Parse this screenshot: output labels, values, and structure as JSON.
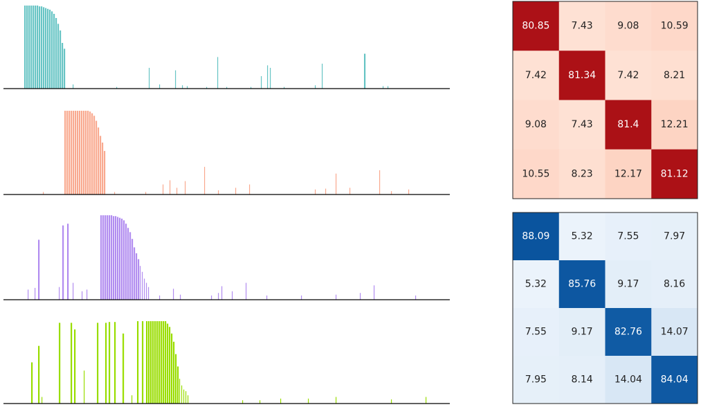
{
  "chart_data": [
    {
      "type": "bar",
      "color": "#66c4c4",
      "xlim": [
        0,
        645
      ],
      "ylim": [
        0,
        1
      ],
      "x": [
        30,
        33,
        36,
        39,
        42,
        45,
        48,
        51,
        54,
        57,
        60,
        63,
        66,
        69,
        72,
        75,
        78,
        81,
        84,
        87,
        100,
        163,
        210,
        225,
        248,
        258,
        265,
        293,
        309,
        322,
        357,
        372,
        381,
        385,
        405,
        450,
        460,
        521,
        548,
        555
      ],
      "values": [
        1,
        1,
        1,
        1,
        1,
        1,
        1,
        0.99,
        0.99,
        0.98,
        0.97,
        0.96,
        0.95,
        0.93,
        0.9,
        0.85,
        0.78,
        0.7,
        0.55,
        0.48,
        0.05,
        0.02,
        0.25,
        0.05,
        0.22,
        0.04,
        0.03,
        0.02,
        0.38,
        0.02,
        0.02,
        0.15,
        0.28,
        0.25,
        0.02,
        0.04,
        0.3,
        0.42,
        0.03,
        0.03
      ]
    },
    {
      "type": "bar",
      "color": "#f9a98f",
      "xlim": [
        0,
        645
      ],
      "ylim": [
        0,
        1
      ],
      "x": [
        88,
        91,
        94,
        97,
        100,
        103,
        106,
        109,
        112,
        115,
        118,
        121,
        124,
        127,
        130,
        133,
        136,
        139,
        142,
        145,
        57,
        160,
        205,
        230,
        240,
        250,
        262,
        290,
        310,
        335,
        355,
        450,
        465,
        480,
        500,
        543,
        560,
        585
      ],
      "values": [
        1,
        1,
        1,
        1,
        1,
        1,
        1,
        1,
        1,
        1,
        1,
        1,
        0.99,
        0.97,
        0.94,
        0.88,
        0.8,
        0.7,
        0.62,
        0.52,
        0.03,
        0.03,
        0.03,
        0.12,
        0.17,
        0.08,
        0.16,
        0.33,
        0.05,
        0.08,
        0.12,
        0.06,
        0.07,
        0.25,
        0.08,
        0.29,
        0.04,
        0.06
      ]
    },
    {
      "type": "bar",
      "color": "#b18cf0",
      "xlim": [
        0,
        645
      ],
      "ylim": [
        0,
        1
      ],
      "x": [
        35,
        45,
        50,
        80,
        85,
        92,
        100,
        113,
        120,
        140,
        143,
        146,
        149,
        152,
        155,
        158,
        161,
        164,
        167,
        170,
        173,
        176,
        179,
        182,
        185,
        188,
        191,
        194,
        197,
        200,
        203,
        206,
        209,
        225,
        245,
        255,
        300,
        310,
        315,
        330,
        350,
        380,
        430,
        480,
        515,
        535,
        595
      ],
      "values": [
        0.12,
        0.14,
        0.71,
        0.15,
        0.88,
        0.9,
        0.2,
        0.1,
        0.12,
        1,
        1,
        1,
        1,
        1,
        1,
        0.99,
        0.99,
        0.98,
        0.97,
        0.96,
        0.94,
        0.9,
        0.85,
        0.8,
        0.72,
        0.62,
        0.55,
        0.48,
        0.4,
        0.33,
        0.25,
        0.2,
        0.15,
        0.05,
        0.13,
        0.06,
        0.05,
        0.08,
        0.16,
        0.1,
        0.2,
        0.05,
        0.05,
        0.06,
        0.08,
        0.17,
        0.05
      ]
    },
    {
      "type": "bar",
      "color": "#99dd00",
      "xlim": [
        0,
        645
      ],
      "ylim": [
        0,
        1
      ],
      "x": [
        40,
        50,
        55,
        80,
        97,
        102,
        116,
        135,
        147,
        152,
        160,
        172,
        185,
        193,
        200,
        206,
        209,
        212,
        215,
        218,
        221,
        224,
        227,
        230,
        233,
        236,
        239,
        242,
        245,
        248,
        251,
        254,
        257,
        260,
        263,
        266,
        345,
        370,
        400,
        440,
        480,
        560,
        610
      ],
      "values": [
        0.5,
        0.7,
        0.08,
        0.98,
        0.98,
        0.9,
        0.4,
        0.98,
        0.98,
        0.99,
        0.99,
        0.85,
        0.1,
        1,
        1,
        1,
        1,
        1,
        1,
        1,
        1,
        1,
        1,
        1,
        1,
        0.97,
        0.93,
        0.85,
        0.75,
        0.6,
        0.45,
        0.3,
        0.22,
        0.17,
        0.15,
        0.1,
        0.04,
        0.04,
        0.06,
        0.06,
        0.08,
        0.05,
        0.08
      ]
    },
    {
      "type": "heatmap",
      "cmap": [
        "#fff5f0",
        "#fcbba1",
        "#fb6a4a",
        "#cb181d",
        "#a50f15"
      ],
      "vlim": [
        0,
        85
      ],
      "values": [
        [
          80.85,
          7.43,
          9.08,
          10.59
        ],
        [
          7.42,
          81.34,
          7.42,
          8.21
        ],
        [
          9.08,
          7.43,
          81.4,
          12.21
        ],
        [
          10.55,
          8.23,
          12.17,
          81.12
        ]
      ]
    },
    {
      "type": "heatmap",
      "cmap": [
        "#f7fbff",
        "#c6dbef",
        "#6baed6",
        "#2171b5",
        "#08519c"
      ],
      "vlim": [
        0,
        90
      ],
      "values": [
        [
          88.09,
          5.32,
          7.55,
          7.97
        ],
        [
          5.32,
          85.76,
          9.17,
          8.16
        ],
        [
          7.55,
          9.17,
          82.76,
          14.07
        ],
        [
          7.95,
          8.14,
          14.04,
          84.04
        ]
      ]
    }
  ]
}
